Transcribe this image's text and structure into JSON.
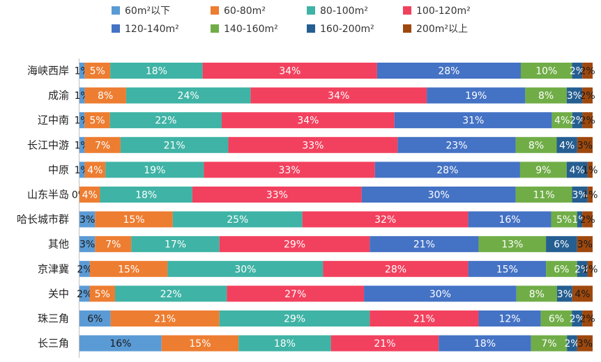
{
  "chart_data": {
    "type": "bar",
    "orientation": "horizontal",
    "stacked": "percent",
    "title": "",
    "xlabel": "",
    "ylabel": "",
    "xlim": [
      0,
      100
    ],
    "grid": false,
    "legend_position": "top",
    "categories": [
      "海峡西岸",
      "成渝",
      "辽中南",
      "长江中游",
      "中原",
      "山东半岛",
      "哈长城市群",
      "其他",
      "京津冀",
      "关中",
      "珠三角",
      "长三角"
    ],
    "series": [
      {
        "name": "60m²以下",
        "color": "#5B9BD5",
        "label_color": "#1a1a1a",
        "values": [
          1,
          1,
          1,
          1,
          1,
          0,
          3,
          3,
          2,
          2,
          6,
          16
        ]
      },
      {
        "name": "60-80m²",
        "color": "#ED7D31",
        "label_color": "#ffffff",
        "values": [
          5,
          8,
          5,
          7,
          4,
          4,
          15,
          7,
          15,
          5,
          21,
          15
        ]
      },
      {
        "name": "80-100m²",
        "color": "#3FB3A5",
        "label_color": "#ffffff",
        "values": [
          18,
          24,
          22,
          21,
          19,
          18,
          25,
          17,
          30,
          22,
          29,
          18
        ]
      },
      {
        "name": "100-120m²",
        "color": "#F2415E",
        "label_color": "#ffffff",
        "values": [
          34,
          34,
          34,
          33,
          33,
          33,
          32,
          29,
          28,
          27,
          21,
          21
        ]
      },
      {
        "name": "120-140m²",
        "color": "#4472C4",
        "label_color": "#ffffff",
        "values": [
          28,
          19,
          31,
          23,
          28,
          30,
          16,
          21,
          15,
          30,
          12,
          18
        ]
      },
      {
        "name": "140-160m²",
        "color": "#70AD47",
        "label_color": "#ffffff",
        "values": [
          10,
          8,
          4,
          8,
          9,
          11,
          5,
          13,
          6,
          8,
          6,
          7
        ]
      },
      {
        "name": "160-200m²",
        "color": "#255E91",
        "label_color": "#ffffff",
        "values": [
          2,
          3,
          2,
          4,
          4,
          3,
          1,
          6,
          2,
          3,
          2,
          2
        ]
      },
      {
        "name": "200m²以上",
        "color": "#9E480E",
        "label_color": "#1a1a1a",
        "values": [
          2,
          2,
          2,
          3,
          1,
          1,
          2,
          3,
          1,
          4,
          2,
          3
        ]
      }
    ]
  }
}
